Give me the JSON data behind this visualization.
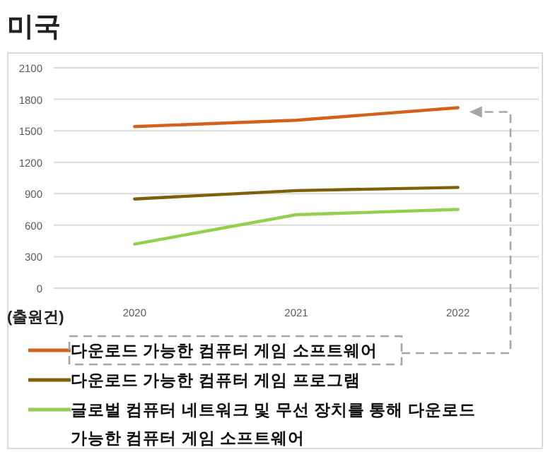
{
  "chart_data": {
    "type": "line",
    "title": "미국",
    "ylabel": "(출원건)",
    "categories": [
      "2020",
      "2021",
      "2022"
    ],
    "series": [
      {
        "name": "다운로드 가능한 컴퓨터 게임 소프트웨어",
        "color": "#d4601a",
        "values": [
          1540,
          1600,
          1720
        ]
      },
      {
        "name": "다운로드 가능한 컴퓨터 게임 프로그램",
        "color": "#7f5f0a",
        "values": [
          850,
          930,
          960
        ]
      },
      {
        "name": "글로벌 컴퓨터 네트워크 및 무선 장치를 통해 다운로드 가능한 컴퓨터 게임 소프트웨어",
        "color": "#92d050",
        "values": [
          420,
          700,
          750
        ]
      }
    ],
    "ylim": [
      0,
      2100
    ],
    "yticks": [
      0,
      300,
      600,
      900,
      1200,
      1500,
      1800,
      2100
    ],
    "grid": "y",
    "legend": "bottom",
    "marker": "none",
    "line_style": "solid"
  }
}
